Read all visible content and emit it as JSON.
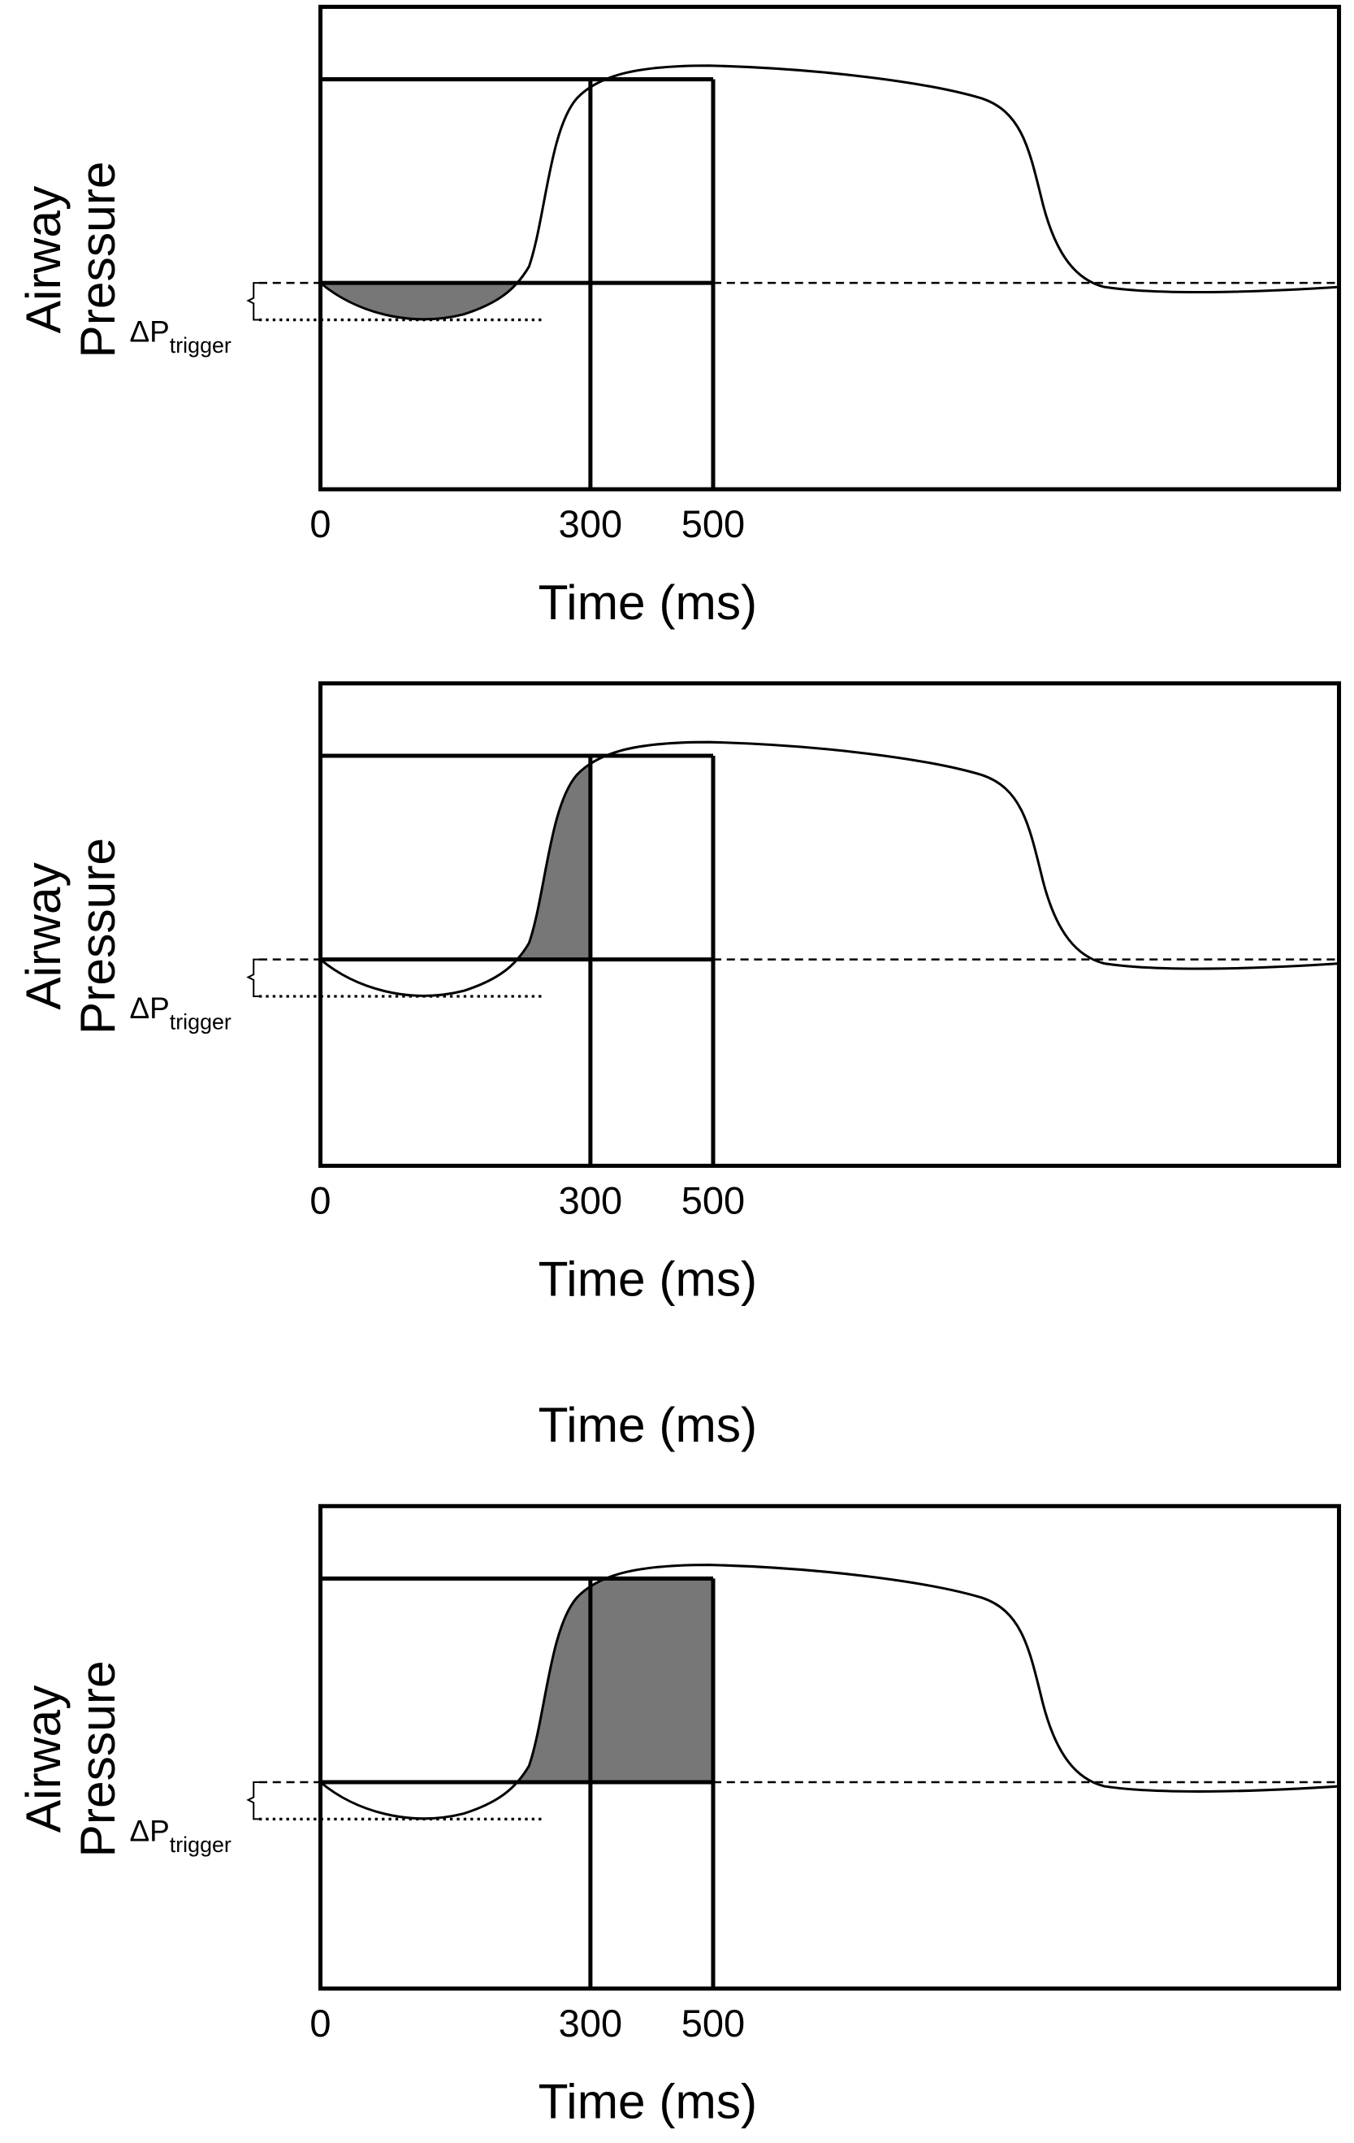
{
  "panels": [
    {
      "y_label_line1": "Airway",
      "y_label_line2": "Pressure",
      "delta_label": "ΔP",
      "delta_subscript": "trigger",
      "ticks": [
        "0",
        "300",
        "500"
      ],
      "x_label": "Time (ms)"
    },
    {
      "y_label_line1": "Airway",
      "y_label_line2": "Pressure",
      "delta_label": "ΔP",
      "delta_subscript": "trigger",
      "ticks": [
        "0",
        "300",
        "500"
      ],
      "x_label": "Time (ms)"
    },
    {
      "y_label_line1": "Airway",
      "y_label_line2": "Pressure",
      "delta_label": "ΔP",
      "delta_subscript": "trigger",
      "ticks": [
        "0",
        "300",
        "500"
      ],
      "x_label": "Time (ms)"
    }
  ],
  "extra_label": "Time (ms)"
}
